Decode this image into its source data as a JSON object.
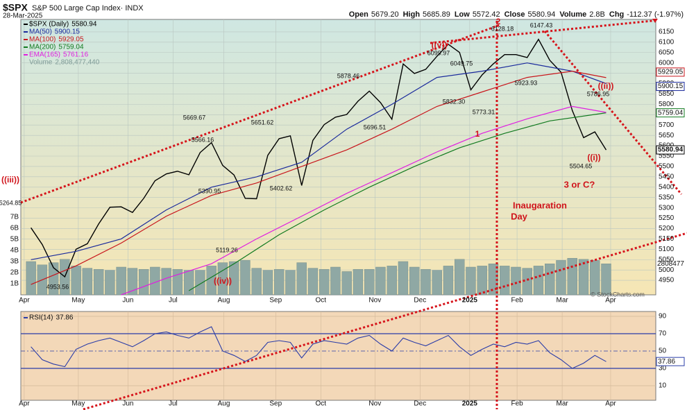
{
  "header": {
    "symbol": "$SPX",
    "name": "S&P 500 Large Cap Index· INDX",
    "date": "28-Mar-2025",
    "quote": [
      [
        "Open",
        "5679.20"
      ],
      [
        "High",
        "5685.89"
      ],
      [
        "Low",
        "5572.42"
      ],
      [
        "Close",
        "5580.94"
      ],
      [
        "Volume",
        "2.8B"
      ],
      [
        "Chg",
        "-112.37 (-1.97%)"
      ]
    ],
    "credit": "© StockCharts.com"
  },
  "chart_data": {
    "type": "line",
    "x": [
      0,
      1,
      2,
      3,
      4,
      5,
      6,
      7,
      8,
      9,
      10,
      11,
      12,
      13,
      14,
      15,
      16,
      17,
      18,
      19,
      20,
      21,
      22,
      23,
      24,
      25,
      26,
      27,
      28,
      29,
      30,
      31,
      32,
      33,
      34,
      35,
      36,
      37,
      38,
      39,
      40,
      41,
      42,
      43,
      44,
      45,
      46,
      47,
      48,
      49,
      50,
      51
    ],
    "xlim": [
      -0.9,
      55.4
    ],
    "xticks": [
      {
        "value": -0.6,
        "label": "Apr"
      },
      {
        "value": 4.2,
        "label": "May"
      },
      {
        "value": 8.6,
        "label": "Jun"
      },
      {
        "value": 12.6,
        "label": "Jul"
      },
      {
        "value": 17.1,
        "label": "Aug"
      },
      {
        "value": 21.7,
        "label": "Sep"
      },
      {
        "value": 25.7,
        "label": "Oct"
      },
      {
        "value": 30.5,
        "label": "Nov"
      },
      {
        "value": 34.5,
        "label": "Dec"
      },
      {
        "value": 38.9,
        "label": "2025"
      },
      {
        "value": 43.1,
        "label": "Feb"
      },
      {
        "value": 47.1,
        "label": "Mar"
      },
      {
        "value": 51.4,
        "label": "Apr"
      }
    ],
    "ylim": [
      4880,
      6210
    ],
    "yticks": [
      4950,
      5000,
      5050,
      5100,
      5150,
      5200,
      5250,
      5300,
      5350,
      5400,
      5450,
      5500,
      5550,
      5600,
      5650,
      5700,
      5750,
      5800,
      5850,
      5900,
      5950,
      6000,
      6050,
      6100,
      6150
    ],
    "series": [
      {
        "name": "$SPX (Daily)",
        "value_label": "5580.94",
        "color": "#000000",
        "values": [
          5204,
          5123,
          5011,
          4967,
          5100,
          5127,
          5222,
          5303,
          5305,
          5278,
          5346,
          5431,
          5464,
          5477,
          5460,
          5567,
          5615,
          5505,
          5459,
          5346,
          5344,
          5554,
          5634,
          5648,
          5408,
          5626,
          5702,
          5738,
          5751,
          5815,
          5864,
          5808,
          5728,
          5995,
          5949,
          5969,
          6032,
          6090,
          6051,
          5870,
          5942,
          5996,
          6040,
          6040,
          6026,
          6114,
          6013,
          5955,
          5770,
          5639,
          5667,
          5580
        ]
      },
      {
        "name": "MA(50)",
        "value_label": "5900.15",
        "color": "#1a2a9c",
        "x": [
          0,
          4,
          8,
          12,
          16,
          20,
          24,
          28,
          32,
          36,
          40,
          44,
          48,
          51
        ],
        "values": [
          5050,
          5090,
          5150,
          5290,
          5400,
          5450,
          5520,
          5680,
          5800,
          5930,
          5960,
          6000,
          5960,
          5900
        ]
      },
      {
        "name": "MA(100)",
        "value_label": "5929.05",
        "color": "#c8151b",
        "x": [
          0,
          4,
          8,
          12,
          16,
          20,
          24,
          28,
          32,
          36,
          40,
          44,
          48,
          51
        ],
        "values": [
          4930,
          5020,
          5130,
          5260,
          5360,
          5420,
          5500,
          5580,
          5680,
          5790,
          5860,
          5930,
          5960,
          5929
        ]
      },
      {
        "name": "MA(200)",
        "value_label": "5759.04",
        "color": "#117a1f",
        "x": [
          14,
          18,
          22,
          26,
          30,
          34,
          38,
          42,
          46,
          51
        ],
        "values": [
          4900,
          5030,
          5170,
          5290,
          5400,
          5500,
          5590,
          5660,
          5720,
          5759
        ]
      },
      {
        "name": "EMA(165)",
        "value_label": "5761.16",
        "color": "#e01ee0",
        "x": [
          8,
          12,
          16,
          20,
          24,
          28,
          32,
          36,
          40,
          44,
          48,
          51
        ],
        "values": [
          4880,
          4960,
          5030,
          5150,
          5260,
          5370,
          5470,
          5570,
          5660,
          5730,
          5790,
          5761
        ]
      }
    ],
    "volume": {
      "name": "Volume",
      "value_label": "2,808,477,440",
      "axis_label": "2808477",
      "color": "#8fa8a4",
      "values": [
        3.0,
        2.7,
        2.9,
        3.2,
        2.6,
        2.4,
        2.3,
        2.2,
        2.5,
        2.4,
        2.3,
        2.5,
        2.4,
        2.3,
        2.2,
        2.2,
        2.6,
        2.9,
        3.0,
        3.1,
        2.4,
        2.2,
        2.3,
        2.2,
        2.9,
        2.4,
        2.3,
        2.5,
        2.1,
        2.3,
        2.3,
        2.5,
        2.6,
        3.0,
        2.5,
        2.3,
        2.2,
        2.6,
        3.2,
        2.5,
        2.6,
        2.8,
        2.6,
        2.5,
        2.4,
        2.6,
        2.8,
        3.1,
        3.3,
        3.2,
        3.1,
        2.8
      ],
      "ylim": [
        0,
        24.8
      ],
      "yticks": [
        {
          "value": 1,
          "label": "1B"
        },
        {
          "value": 2,
          "label": "2B"
        },
        {
          "value": 3,
          "label": "3B"
        },
        {
          "value": 4,
          "label": "4B"
        },
        {
          "value": 5,
          "label": "5B"
        },
        {
          "value": 6,
          "label": "6B"
        },
        {
          "value": 7,
          "label": "7B"
        }
      ]
    },
    "rsi": {
      "name": "RSI(14)",
      "value_label": "37.86",
      "color": "#2a3ca8",
      "values": [
        55,
        40,
        35,
        32,
        52,
        58,
        62,
        65,
        60,
        55,
        62,
        70,
        72,
        68,
        65,
        72,
        78,
        50,
        45,
        38,
        45,
        60,
        62,
        60,
        42,
        58,
        62,
        60,
        58,
        65,
        68,
        58,
        50,
        65,
        60,
        56,
        62,
        68,
        55,
        45,
        52,
        58,
        55,
        60,
        58,
        62,
        48,
        40,
        30,
        36,
        45,
        37.86
      ],
      "ylim": [
        -6.8,
        95.6
      ],
      "yticks": [
        10,
        30,
        50,
        70,
        90
      ]
    },
    "annotations": [
      "5264.85",
      "((iii))",
      "4953.56",
      "5669.67",
      "5566.16",
      "5390.95",
      "5651.62",
      "5119.26",
      "((iv))",
      "5402.62",
      "5878.46",
      "5696.51",
      "6099.97",
      "((v))",
      "6049.75",
      "5832.30",
      "5773.31",
      "1",
      "6128.18",
      "2",
      "6147.43",
      "5923.93",
      "5786.95",
      "((ii))",
      "((i))",
      "5504.65",
      "3 or C?",
      "Inaugaration",
      "Day"
    ]
  }
}
